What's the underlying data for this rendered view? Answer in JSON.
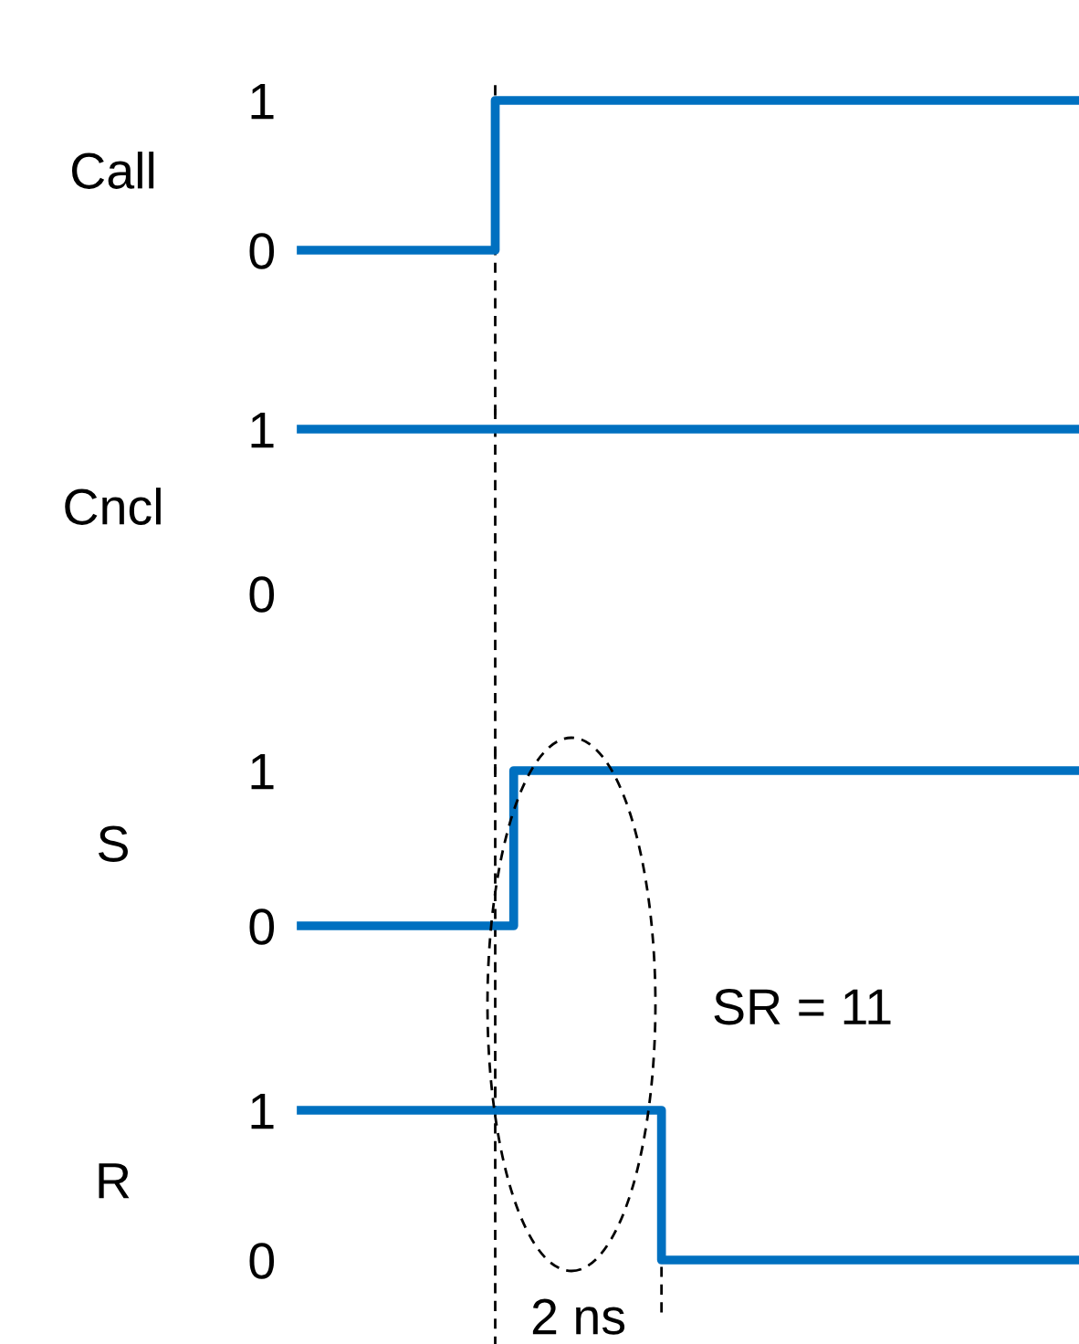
{
  "chart_data": [
    {
      "type": "step",
      "ylabel": "Call",
      "categories": [
        null,
        null,
        null,
        null,
        null,
        null,
        null,
        null,
        null,
        null,
        null,
        null,
        null,
        null,
        null,
        null,
        null,
        null,
        null,
        null,
        null,
        null,
        null,
        null,
        null,
        null,
        null,
        null,
        null,
        null,
        null,
        null,
        null,
        null,
        null,
        null,
        null,
        null,
        null,
        null,
        null,
        null,
        null
      ],
      "series": [
        {
          "color": "#0070c0",
          "values": [
            0,
            0,
            0,
            0,
            0,
            0,
            0,
            0,
            0,
            0,
            0,
            1,
            1,
            1,
            1,
            1,
            1,
            1,
            1,
            1,
            1,
            1,
            1,
            1,
            1,
            1,
            1,
            1,
            1,
            1,
            1,
            1,
            1,
            1,
            1,
            1,
            1,
            1,
            1,
            1,
            1,
            1,
            1
          ]
        }
      ],
      "ylim": [
        0,
        1
      ],
      "yticks": [
        0,
        1
      ],
      "tick_labels": "y",
      "grid": false,
      "legend": false
    },
    {
      "type": "step",
      "ylabel": "Cncl",
      "categories": [
        null,
        null,
        null,
        null,
        null,
        null,
        null,
        null,
        null,
        null,
        null,
        null,
        null,
        null,
        null,
        null,
        null,
        null,
        null,
        null,
        null,
        null,
        null,
        null,
        null,
        null,
        null,
        null,
        null,
        null,
        null,
        null,
        null,
        null,
        null,
        null,
        null,
        null,
        null,
        null,
        null,
        null,
        null
      ],
      "series": [
        {
          "color": "#0070c0",
          "values": [
            1,
            1,
            1,
            1,
            1,
            1,
            1,
            1,
            1,
            1,
            1,
            1,
            1,
            1,
            1,
            1,
            1,
            1,
            1,
            1,
            1,
            1,
            1,
            1,
            1,
            1,
            1,
            1,
            1,
            1,
            1,
            1,
            1,
            1,
            1,
            1,
            1,
            1,
            1,
            1,
            1,
            1,
            1
          ]
        }
      ],
      "ylim": [
        0,
        1
      ],
      "yticks": [
        0,
        1
      ],
      "tick_labels": "y",
      "grid": false,
      "legend": false
    },
    {
      "type": "step",
      "ylabel": "S",
      "categories": [
        null,
        null,
        null,
        null,
        null,
        null,
        null,
        null,
        null,
        null,
        null,
        null,
        null,
        null,
        null,
        null,
        null,
        null,
        null,
        null,
        null,
        null,
        null,
        null,
        null,
        null,
        null,
        null,
        null,
        null,
        null,
        null,
        null,
        null,
        null,
        null,
        null,
        null,
        null,
        null,
        null,
        null,
        null
      ],
      "series": [
        {
          "color": "#0070c0",
          "values": [
            0,
            0,
            0,
            0,
            0,
            0,
            0,
            0,
            0,
            0,
            0,
            0,
            1,
            1,
            1,
            1,
            1,
            1,
            1,
            1,
            1,
            1,
            1,
            1,
            1,
            1,
            1,
            1,
            1,
            1,
            1,
            1,
            1,
            1,
            1,
            1,
            1,
            1,
            1,
            1,
            1,
            1,
            1
          ]
        }
      ],
      "ylim": [
        0,
        1
      ],
      "yticks": [
        0,
        1
      ],
      "tick_labels": "y",
      "grid": false,
      "legend": false,
      "annotations": [
        "SR = 11"
      ]
    },
    {
      "type": "step",
      "ylabel": "R",
      "categories": [
        null,
        null,
        null,
        null,
        null,
        null,
        null,
        null,
        null,
        null,
        null,
        null,
        null,
        null,
        null,
        null,
        null,
        null,
        null,
        null,
        null,
        null,
        null,
        null,
        null,
        null,
        null,
        null,
        null,
        null,
        null,
        null,
        null,
        null,
        null,
        null,
        null,
        null,
        null,
        null,
        null,
        null,
        null
      ],
      "series": [
        {
          "color": "#0070c0",
          "values": [
            1,
            1,
            1,
            1,
            1,
            1,
            1,
            1,
            1,
            1,
            1,
            1,
            1,
            1,
            1,
            1,
            1,
            1,
            1,
            1,
            0,
            0,
            0,
            0,
            0,
            0,
            0,
            0,
            0,
            0,
            0,
            0,
            0,
            0,
            0,
            0,
            0,
            0,
            0,
            0,
            0,
            0,
            0
          ]
        }
      ],
      "ylim": [
        0,
        1
      ],
      "yticks": [
        0,
        1
      ],
      "tick_labels": "y",
      "grid": false,
      "legend": false,
      "annotations": [
        "2 ns"
      ]
    }
  ]
}
